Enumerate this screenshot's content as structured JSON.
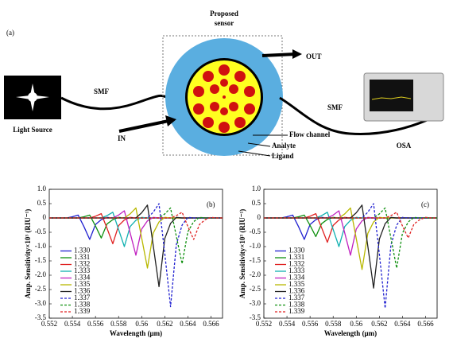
{
  "diagram": {
    "panel_label": "(a)",
    "source_label": "Light Source",
    "smf_left": "SMF",
    "sensor_label": [
      "Proposed",
      "sensor"
    ],
    "out_label": "OUT",
    "in_label": "IN",
    "smf_right": "SMF",
    "osa_label": "OSA",
    "layer_labels": [
      "Flow channel",
      "Analyte",
      "Ligand"
    ]
  },
  "chart_data": [
    {
      "type": "line",
      "panel_label": "(b)",
      "x_label": "Wavelength (μm)",
      "y_label": "Amp. Sensitivity×10³ (RIU⁻¹)",
      "legend": "lower left",
      "x": [
        0.552,
        0.5525,
        0.553,
        0.5535,
        0.554,
        0.5545,
        0.555,
        0.5555,
        0.556,
        0.5565,
        0.557,
        0.5575,
        0.558,
        0.5585,
        0.559,
        0.5595,
        0.56,
        0.5605,
        0.561,
        0.5615,
        0.562,
        0.5625,
        0.563,
        0.5635,
        0.564,
        0.5645,
        0.565,
        0.5655,
        0.566,
        0.5665,
        0.567
      ],
      "xlim": [
        0.552,
        0.567
      ],
      "xticks": [
        0.552,
        0.554,
        0.556,
        0.558,
        0.56,
        0.562,
        0.564,
        0.566
      ],
      "ylim": [
        -3.5,
        1
      ],
      "yticks": [
        {
          "value": -3.5,
          "label": "-3.5"
        },
        {
          "value": -3,
          "label": "-3.0"
        },
        -2.5,
        {
          "value": -2,
          "label": "-2.0"
        },
        -1.5,
        {
          "value": -1,
          "label": "-1.0"
        },
        -0.5,
        0,
        0.5,
        {
          "value": 1,
          "label": "1.0"
        }
      ],
      "series": [
        {
          "name": "1.330",
          "color": "#2020d0",
          "dash": false,
          "values": [
            0,
            0,
            0,
            0,
            0.04,
            0.1,
            -0.3,
            -0.75,
            -0.23,
            -0.06,
            0.02,
            0,
            0,
            0,
            0,
            0,
            0,
            0,
            0,
            0,
            0,
            0,
            0,
            0,
            0,
            0,
            0,
            0,
            0,
            0,
            0
          ]
        },
        {
          "name": "1.331",
          "color": "#109010",
          "dash": false,
          "values": [
            0,
            0,
            0,
            0,
            0,
            0,
            0.04,
            0.1,
            -0.28,
            -0.7,
            -0.21,
            -0.06,
            0.02,
            0,
            0,
            0,
            0,
            0,
            0,
            0,
            0,
            0,
            0,
            0,
            0,
            0,
            0,
            0,
            0,
            0,
            0
          ]
        },
        {
          "name": "1.332",
          "color": "#e02020",
          "dash": false,
          "values": [
            0,
            0,
            0,
            0,
            0,
            0,
            0,
            0,
            0.06,
            0.15,
            -0.36,
            -0.9,
            -0.27,
            -0.07,
            0.02,
            0,
            0,
            0,
            0,
            0,
            0,
            0,
            0,
            0,
            0,
            0,
            0,
            0,
            0,
            0,
            0
          ]
        },
        {
          "name": "1.333",
          "color": "#10b0b0",
          "dash": false,
          "values": [
            0,
            0,
            0,
            0,
            0,
            0,
            0,
            0,
            0,
            0,
            0.08,
            0.2,
            -0.4,
            -1,
            -0.3,
            -0.08,
            0.02,
            0,
            0,
            0,
            0,
            0,
            0,
            0,
            0,
            0,
            0,
            0,
            0,
            0,
            0
          ]
        },
        {
          "name": "1.334",
          "color": "#c020c0",
          "dash": false,
          "values": [
            0,
            0,
            0,
            0,
            0,
            0,
            0,
            0,
            0,
            0,
            0,
            0,
            0.1,
            0.25,
            -0.52,
            -1.3,
            -0.39,
            -0.1,
            0.02,
            0,
            0,
            0,
            0,
            0,
            0,
            0,
            0,
            0,
            0,
            0,
            0
          ]
        },
        {
          "name": "1.335",
          "color": "#b8b800",
          "dash": false,
          "values": [
            0,
            0,
            0,
            0,
            0,
            0,
            0,
            0,
            0,
            0,
            0,
            0,
            0,
            0,
            0.14,
            0.35,
            -0.7,
            -1.75,
            -0.53,
            -0.14,
            0.02,
            0,
            0,
            0,
            0,
            0,
            0,
            0,
            0,
            0,
            0
          ]
        },
        {
          "name": "1.336",
          "color": "#202020",
          "dash": false,
          "values": [
            0,
            0,
            0,
            0,
            0,
            0,
            0,
            0,
            0,
            0,
            0,
            0,
            0,
            0,
            0,
            0,
            0.18,
            0.45,
            -0.96,
            -2.4,
            -0.72,
            -0.19,
            0.02,
            0,
            0,
            0,
            0,
            0,
            0,
            0,
            0
          ]
        },
        {
          "name": "1.337",
          "color": "#2020d0",
          "dash": true,
          "values": [
            0,
            0,
            0,
            0,
            0,
            0,
            0,
            0,
            0,
            0,
            0,
            0,
            0,
            0,
            0,
            0,
            0,
            0,
            0.2,
            0.5,
            -1.24,
            -3.1,
            -0.93,
            -0.25,
            0.02,
            0,
            0,
            0,
            0,
            0,
            0
          ]
        },
        {
          "name": "1.338",
          "color": "#109010",
          "dash": true,
          "values": [
            0,
            0,
            0,
            0,
            0,
            0,
            0,
            0,
            0,
            0,
            0,
            0,
            0,
            0,
            0,
            0,
            0,
            0,
            0,
            0,
            0.14,
            0.35,
            -0.64,
            -1.6,
            -0.48,
            -0.13,
            0.02,
            0,
            0,
            0,
            0
          ]
        },
        {
          "name": "1.339",
          "color": "#e02020",
          "dash": true,
          "values": [
            0,
            0,
            0,
            0,
            0,
            0,
            0,
            0,
            0,
            0,
            0,
            0,
            0,
            0,
            0,
            0,
            0,
            0,
            0,
            0,
            0,
            0,
            0.08,
            0.2,
            -0.3,
            -0.75,
            -0.23,
            -0.06,
            0.02,
            0,
            0
          ]
        }
      ]
    },
    {
      "type": "line",
      "panel_label": "(c)",
      "x_label": "Wavelength (μm)",
      "y_label": "Amp. Sensitivity×10³ (RIU⁻¹)",
      "legend": "lower left",
      "x": [
        0.552,
        0.5525,
        0.553,
        0.5535,
        0.554,
        0.5545,
        0.555,
        0.5555,
        0.556,
        0.5565,
        0.557,
        0.5575,
        0.558,
        0.5585,
        0.559,
        0.5595,
        0.56,
        0.5605,
        0.561,
        0.5615,
        0.562,
        0.5625,
        0.563,
        0.5635,
        0.564,
        0.5645,
        0.565,
        0.5655,
        0.566,
        0.5665,
        0.567
      ],
      "xlim": [
        0.552,
        0.567
      ],
      "xticks": [
        0.552,
        0.554,
        0.556,
        0.558,
        0.56,
        0.562,
        0.564,
        0.566
      ],
      "ylim": [
        -3.5,
        1
      ],
      "yticks": [
        {
          "value": -3.5,
          "label": "-3.5"
        },
        {
          "value": -3,
          "label": "-3.0"
        },
        -2.5,
        {
          "value": -2,
          "label": "-2.0"
        },
        -1.5,
        {
          "value": -1,
          "label": "-1.0"
        },
        -0.5,
        0,
        0.5,
        {
          "value": 1,
          "label": "1.0"
        }
      ],
      "series": [
        {
          "name": "1.330",
          "color": "#2020d0",
          "dash": false,
          "values": [
            0,
            0,
            0,
            0,
            0.04,
            0.1,
            -0.3,
            -0.75,
            -0.23,
            -0.06,
            0.02,
            0,
            0,
            0,
            0,
            0,
            0,
            0,
            0,
            0,
            0,
            0,
            0,
            0,
            0,
            0,
            0,
            0,
            0,
            0,
            0
          ]
        },
        {
          "name": "1.331",
          "color": "#109010",
          "dash": false,
          "values": [
            0,
            0,
            0,
            0,
            0,
            0,
            0.04,
            0.1,
            -0.26,
            -0.65,
            -0.2,
            -0.05,
            0.02,
            0,
            0,
            0,
            0,
            0,
            0,
            0,
            0,
            0,
            0,
            0,
            0,
            0,
            0,
            0,
            0,
            0,
            0
          ]
        },
        {
          "name": "1.332",
          "color": "#e02020",
          "dash": false,
          "values": [
            0,
            0,
            0,
            0,
            0,
            0,
            0,
            0,
            0.06,
            0.15,
            -0.34,
            -0.85,
            -0.26,
            -0.07,
            0.02,
            0,
            0,
            0,
            0,
            0,
            0,
            0,
            0,
            0,
            0,
            0,
            0,
            0,
            0,
            0,
            0
          ]
        },
        {
          "name": "1.333",
          "color": "#10b0b0",
          "dash": false,
          "values": [
            0,
            0,
            0,
            0,
            0,
            0,
            0,
            0,
            0,
            0,
            0.08,
            0.2,
            -0.4,
            -1,
            -0.3,
            -0.08,
            0.02,
            0,
            0,
            0,
            0,
            0,
            0,
            0,
            0,
            0,
            0,
            0,
            0,
            0,
            0
          ]
        },
        {
          "name": "1.334",
          "color": "#c020c0",
          "dash": false,
          "values": [
            0,
            0,
            0,
            0,
            0,
            0,
            0,
            0,
            0,
            0,
            0,
            0,
            0.1,
            0.25,
            -0.52,
            -1.3,
            -0.39,
            -0.1,
            0.02,
            0,
            0,
            0,
            0,
            0,
            0,
            0,
            0,
            0,
            0,
            0,
            0
          ]
        },
        {
          "name": "1.335",
          "color": "#b8b800",
          "dash": false,
          "values": [
            0,
            0,
            0,
            0,
            0,
            0,
            0,
            0,
            0,
            0,
            0,
            0,
            0,
            0,
            0.14,
            0.35,
            -0.72,
            -1.8,
            -0.54,
            -0.14,
            0.02,
            0,
            0,
            0,
            0,
            0,
            0,
            0,
            0,
            0,
            0
          ]
        },
        {
          "name": "1.336",
          "color": "#202020",
          "dash": false,
          "values": [
            0,
            0,
            0,
            0,
            0,
            0,
            0,
            0,
            0,
            0,
            0,
            0,
            0,
            0,
            0,
            0,
            0.18,
            0.45,
            -0.98,
            -2.45,
            -0.74,
            -0.2,
            0.02,
            0,
            0,
            0,
            0,
            0,
            0,
            0,
            0
          ]
        },
        {
          "name": "1.337",
          "color": "#2020d0",
          "dash": true,
          "values": [
            0,
            0,
            0,
            0,
            0,
            0,
            0,
            0,
            0,
            0,
            0,
            0,
            0,
            0,
            0,
            0,
            0,
            0,
            0.2,
            0.5,
            -1.26,
            -3.15,
            -0.95,
            -0.25,
            0.02,
            0,
            0,
            0,
            0,
            0,
            0
          ]
        },
        {
          "name": "1.338",
          "color": "#109010",
          "dash": true,
          "values": [
            0,
            0,
            0,
            0,
            0,
            0,
            0,
            0,
            0,
            0,
            0,
            0,
            0,
            0,
            0,
            0,
            0,
            0,
            0,
            0,
            0.14,
            0.35,
            -0.7,
            -1.75,
            -0.53,
            -0.14,
            0.02,
            0,
            0,
            0,
            0
          ]
        },
        {
          "name": "1.339",
          "color": "#e02020",
          "dash": true,
          "values": [
            0,
            0,
            0,
            0,
            0,
            0,
            0,
            0,
            0,
            0,
            0,
            0,
            0,
            0,
            0,
            0,
            0,
            0,
            0,
            0,
            0,
            0,
            0.08,
            0.2,
            -0.28,
            -0.7,
            -0.21,
            -0.06,
            0.02,
            0,
            0
          ]
        }
      ]
    }
  ]
}
